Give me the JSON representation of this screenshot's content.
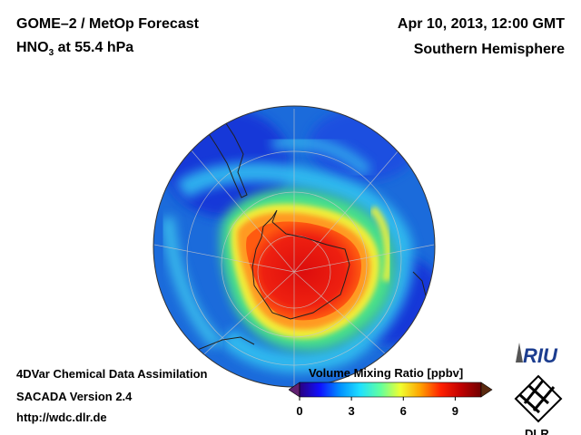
{
  "header": {
    "title_line1": "GOME–2 / MetOp Forecast",
    "species": "HNO",
    "species_sub": "3",
    "level": " at 55.4 hPa",
    "datetime": "Apr 10, 2013, 12:00 GMT",
    "region": "Southern Hemisphere"
  },
  "footer": {
    "method": "4DVar Chemical Data Assimilation",
    "version": "SACADA Version 2.4",
    "url": "http://wdc.dlr.de"
  },
  "colorbar": {
    "title": "Volume Mixing Ratio [ppbv]",
    "min": 0,
    "max": 10.5,
    "ticks": [
      "0",
      "3",
      "6",
      "9"
    ],
    "tick_values": [
      0,
      3,
      6,
      9
    ],
    "stops": [
      "#2a0080",
      "#1010ff",
      "#0090ff",
      "#20e0ff",
      "#60ffa0",
      "#f0ff30",
      "#ffa000",
      "#ff2000",
      "#c00000",
      "#700000"
    ]
  },
  "map": {
    "projection": "Orthographic",
    "center": "South Pole",
    "field_colors": {
      "background": "#1b6bdb",
      "low": "#1452e8",
      "mid": "#2fc0f0",
      "green": "#48e08a",
      "yellow": "#e8f040",
      "orange": "#ff9a20",
      "red": "#ee2010",
      "core": "#dd0d0d"
    }
  },
  "logos": {
    "riu": "RIU",
    "dlr": "DLR"
  }
}
